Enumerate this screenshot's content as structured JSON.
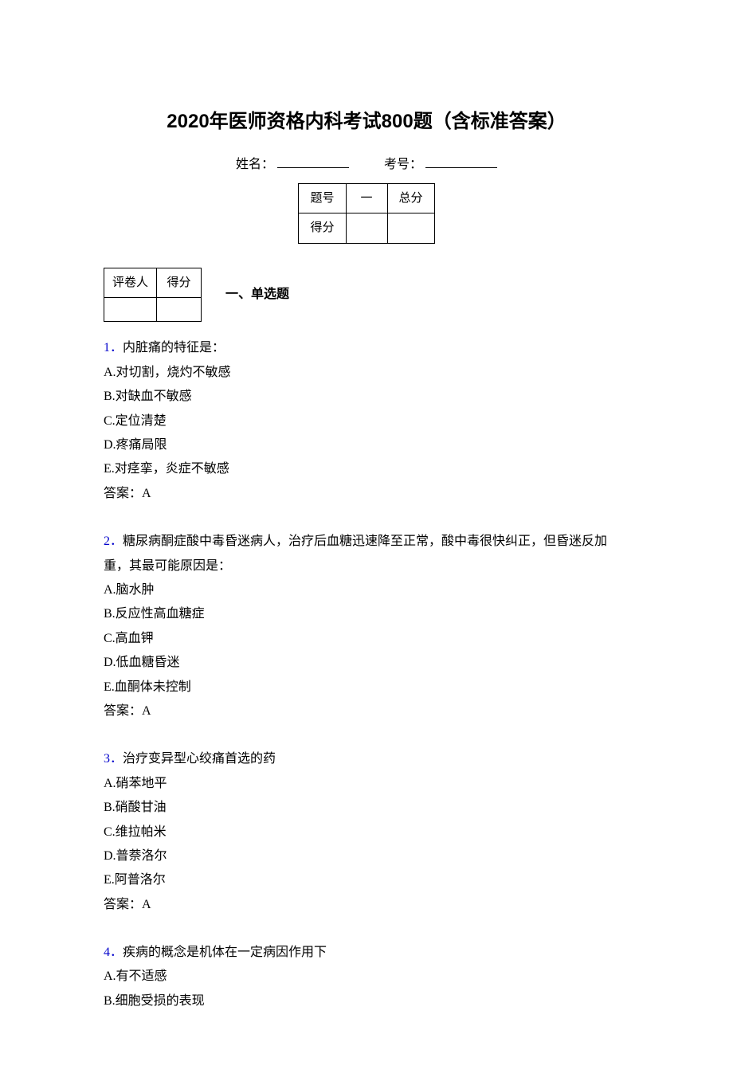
{
  "title": "2020年医师资格内科考试800题（含标准答案）",
  "header": {
    "name_label": "姓名：",
    "exam_no_label": "考号："
  },
  "score_table": {
    "row1": [
      "题号",
      "一",
      "总分"
    ],
    "row2": [
      "得分",
      "",
      ""
    ]
  },
  "grader_table": {
    "row1": [
      "评卷人",
      "得分"
    ],
    "row2": [
      "",
      ""
    ]
  },
  "section_heading": "一、单选题",
  "questions": [
    {
      "num": "1．",
      "stem": "内脏痛的特征是：",
      "options": [
        "A.对切割，烧灼不敏感",
        "B.对缺血不敏感",
        "C.定位清楚",
        "D.疼痛局限",
        "E.对痉挛，炎症不敏感"
      ],
      "answer": "答案：A"
    },
    {
      "num": "2．",
      "stem": "糖尿病酮症酸中毒昏迷病人，治疗后血糖迅速降至正常，酸中毒很快纠正，但昏迷反加重，其最可能原因是：",
      "options": [
        "A.脑水肿",
        "B.反应性高血糖症",
        "C.高血钾",
        "D.低血糖昏迷",
        "E.血酮体未控制"
      ],
      "answer": "答案：A"
    },
    {
      "num": "3．",
      "stem": "治疗变异型心绞痛首选的药",
      "options": [
        "A.硝苯地平",
        "B.硝酸甘油",
        "C.维拉帕米",
        "D.普萘洛尔",
        "E.阿普洛尔"
      ],
      "answer": "答案：A"
    },
    {
      "num": "4．",
      "stem": "疾病的概念是机体在一定病因作用下",
      "options": [
        "A.有不适感",
        "B.细胞受损的表现"
      ],
      "answer": ""
    }
  ],
  "colors": {
    "text": "#000000",
    "question_number": "#0000cc",
    "background": "#ffffff",
    "border": "#000000"
  }
}
